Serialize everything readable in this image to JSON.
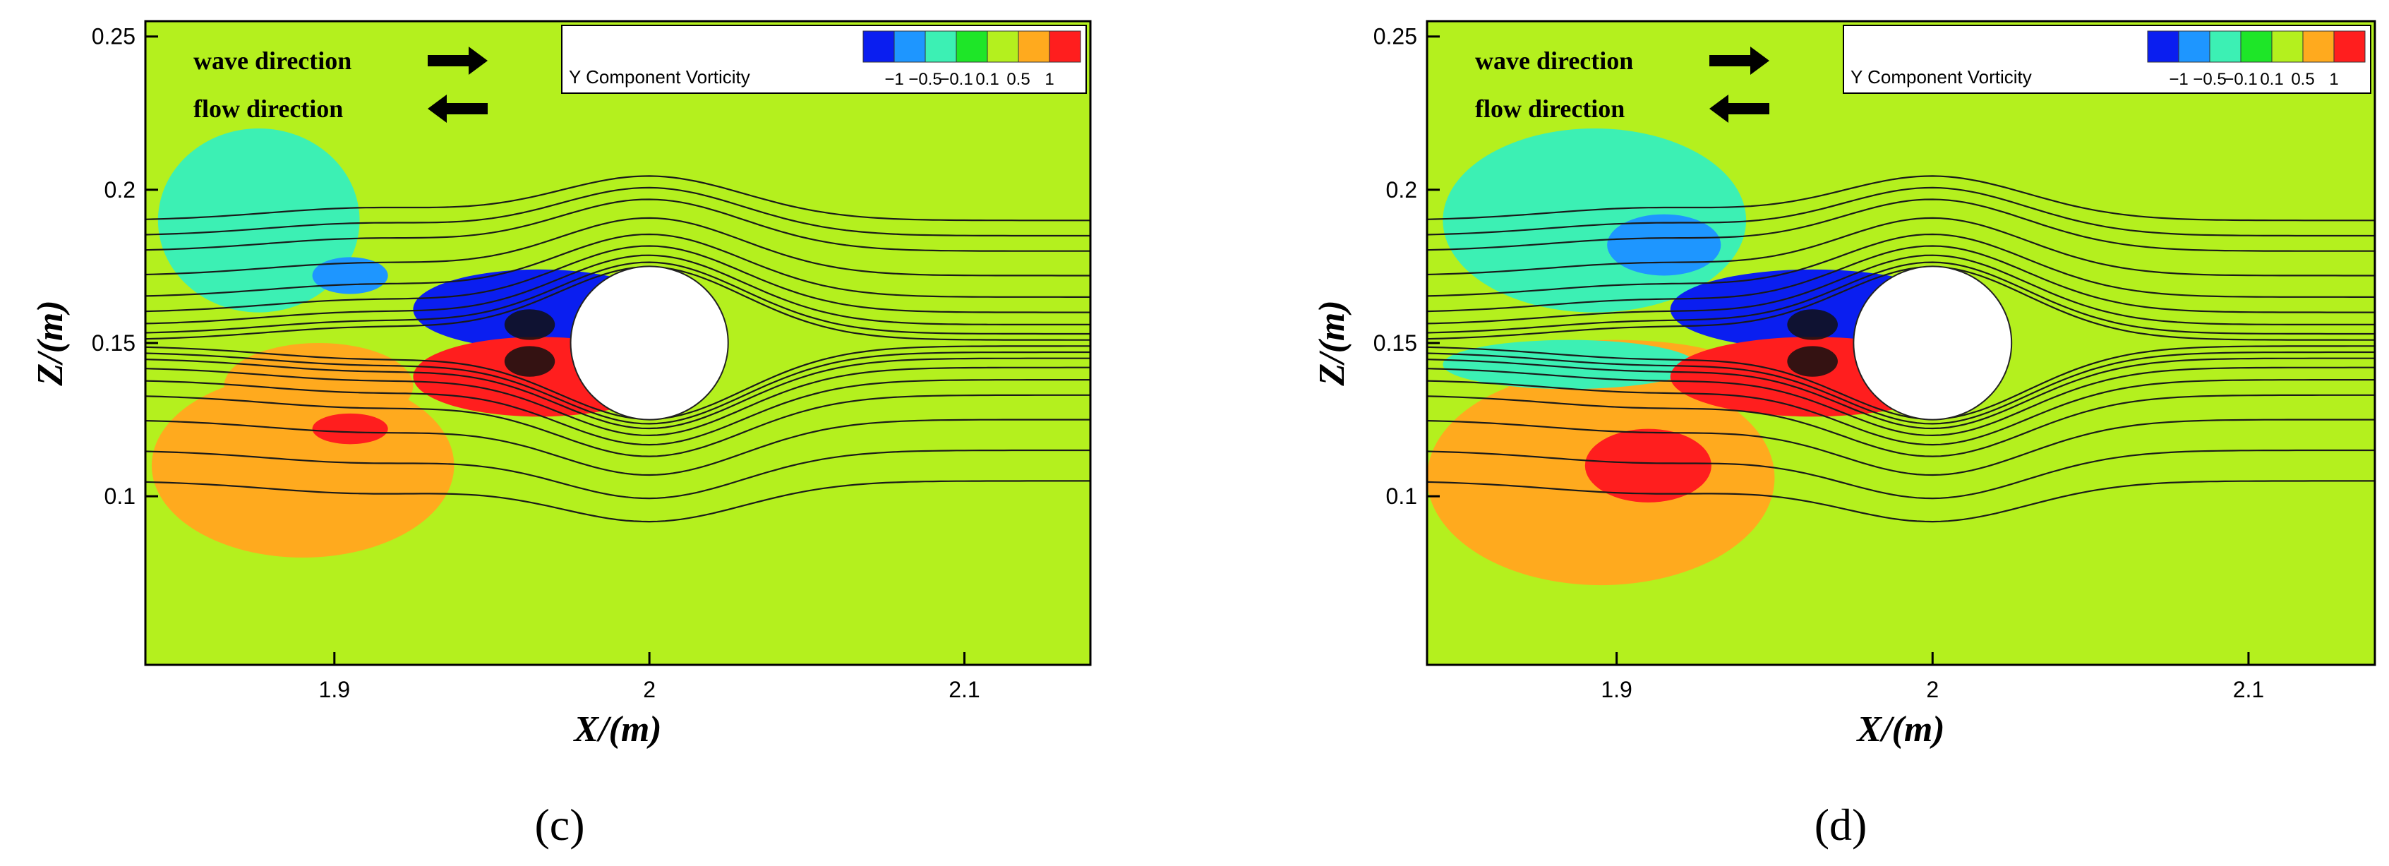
{
  "chart_data": [
    {
      "type": "contour",
      "panel_label": "(c)",
      "xlabel": "X/(m)",
      "ylabel": "Z/(m)",
      "xlim": [
        1.84,
        2.14
      ],
      "ylim": [
        0.045,
        0.255
      ],
      "x_ticks": [
        1.9,
        2.0,
        2.1
      ],
      "x_tick_labels": [
        "1.9",
        "2",
        "2.1"
      ],
      "y_ticks": [
        0.1,
        0.15,
        0.2,
        0.25
      ],
      "y_tick_labels": [
        "0.1",
        "0.15",
        "0.2",
        "0.25"
      ],
      "cylinder": {
        "cx": 2.0,
        "cz": 0.15,
        "r": 0.025
      },
      "legend": {
        "title": "Y Component Vorticity",
        "levels": [
          "−1",
          "−0.5",
          "−0.1",
          "0.1",
          "0.5",
          "1"
        ],
        "colors": [
          "#0a1ef0",
          "#1e96ff",
          "#3cf0b4",
          "#1ee628",
          "#b4f01e",
          "#ffaa1e",
          "#ff1e1e"
        ]
      },
      "annotations": [
        "wave direction",
        "flow direction"
      ],
      "background_level": "0.1",
      "regions": [
        {
          "level": "−0.1",
          "cx": 1.876,
          "cz": 0.19,
          "rx": 0.032,
          "rz": 0.03
        },
        {
          "level": "−0.5",
          "cx": 1.905,
          "cz": 0.172,
          "rx": 0.012,
          "rz": 0.006
        },
        {
          "level": "0.5",
          "cx": 1.89,
          "cz": 0.11,
          "rx": 0.048,
          "rz": 0.03
        },
        {
          "level": "0.5",
          "cx": 1.895,
          "cz": 0.136,
          "rx": 0.03,
          "rz": 0.014
        },
        {
          "level": "1",
          "cx": 1.905,
          "cz": 0.122,
          "rx": 0.012,
          "rz": 0.005
        },
        {
          "level": "−1",
          "cx": 1.965,
          "cz": 0.161,
          "rx": 0.04,
          "rz": 0.013
        },
        {
          "level": "1",
          "cx": 1.965,
          "cz": 0.139,
          "rx": 0.04,
          "rz": 0.013
        }
      ],
      "streamline_z": [
        0.19,
        0.185,
        0.18,
        0.172,
        0.165,
        0.16,
        0.156,
        0.153,
        0.151,
        0.149,
        0.147,
        0.145,
        0.142,
        0.138,
        0.133,
        0.125,
        0.115,
        0.105
      ]
    },
    {
      "type": "contour",
      "panel_label": "(d)",
      "xlabel": "X/(m)",
      "ylabel": "Z/(m)",
      "xlim": [
        1.84,
        2.14
      ],
      "ylim": [
        0.045,
        0.255
      ],
      "x_ticks": [
        1.9,
        2.0,
        2.1
      ],
      "x_tick_labels": [
        "1.9",
        "2",
        "2.1"
      ],
      "y_ticks": [
        0.1,
        0.15,
        0.2,
        0.25
      ],
      "y_tick_labels": [
        "0.1",
        "0.15",
        "0.2",
        "0.25"
      ],
      "cylinder": {
        "cx": 2.0,
        "cz": 0.15,
        "r": 0.025
      },
      "legend": {
        "title": "Y Component Vorticity",
        "levels": [
          "−1",
          "−0.5",
          "−0.1",
          "0.1",
          "0.5",
          "1"
        ],
        "colors": [
          "#0a1ef0",
          "#1e96ff",
          "#3cf0b4",
          "#1ee628",
          "#b4f01e",
          "#ffaa1e",
          "#ff1e1e"
        ]
      },
      "annotations": [
        "wave direction",
        "flow direction"
      ],
      "background_level": "0.1",
      "regions": [
        {
          "level": "−0.1",
          "cx": 1.893,
          "cz": 0.19,
          "rx": 0.048,
          "rz": 0.03
        },
        {
          "level": "−0.5",
          "cx": 1.915,
          "cz": 0.182,
          "rx": 0.018,
          "rz": 0.01
        },
        {
          "level": "0.5",
          "cx": 1.895,
          "cz": 0.106,
          "rx": 0.055,
          "rz": 0.035
        },
        {
          "level": "0.5",
          "cx": 1.9,
          "cz": 0.141,
          "rx": 0.04,
          "rz": 0.01
        },
        {
          "level": "−0.1",
          "cx": 1.885,
          "cz": 0.143,
          "rx": 0.04,
          "rz": 0.008
        },
        {
          "level": "1",
          "cx": 1.91,
          "cz": 0.11,
          "rx": 0.02,
          "rz": 0.012
        },
        {
          "level": "−1",
          "cx": 1.962,
          "cz": 0.161,
          "rx": 0.045,
          "rz": 0.013
        },
        {
          "level": "1",
          "cx": 1.962,
          "cz": 0.139,
          "rx": 0.045,
          "rz": 0.013
        }
      ],
      "streamline_z": [
        0.19,
        0.185,
        0.18,
        0.172,
        0.165,
        0.16,
        0.156,
        0.153,
        0.151,
        0.149,
        0.147,
        0.145,
        0.142,
        0.138,
        0.133,
        0.125,
        0.115,
        0.105
      ]
    }
  ]
}
